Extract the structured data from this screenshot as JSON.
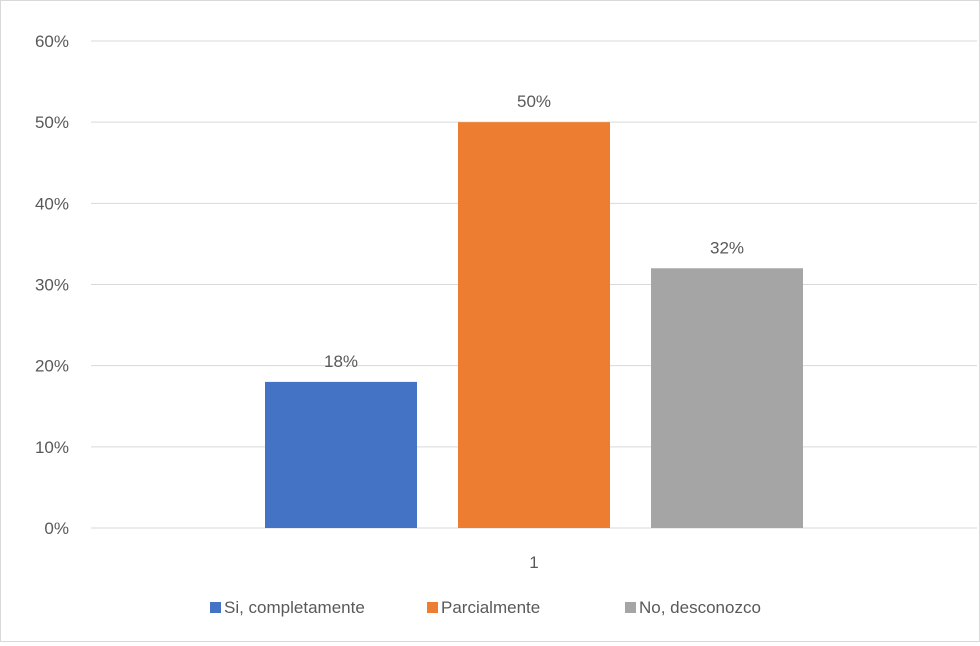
{
  "chart_data": {
    "type": "bar",
    "categories": [
      "1"
    ],
    "series": [
      {
        "name": "Si, completamente",
        "values": [
          0.18
        ],
        "color": "#4472C4"
      },
      {
        "name": "Parcialmente",
        "values": [
          0.5
        ],
        "color": "#ED7D31"
      },
      {
        "name": "No, desconozco",
        "values": [
          0.32
        ],
        "color": "#A5A5A5"
      }
    ],
    "data_labels": [
      "18%",
      "50%",
      "32%"
    ],
    "ylim": [
      0,
      0.6
    ],
    "yticks": [
      0,
      0.1,
      0.2,
      0.3,
      0.4,
      0.5,
      0.6
    ],
    "ytick_labels": [
      "0%",
      "10%",
      "20%",
      "30%",
      "40%",
      "50%",
      "60%"
    ],
    "xtick_labels": [
      "1"
    ],
    "grid": true,
    "legend_position": "bottom",
    "colors": {
      "grid": "#d9d9d9",
      "text": "#595959",
      "border": "#d9d9d9"
    }
  }
}
